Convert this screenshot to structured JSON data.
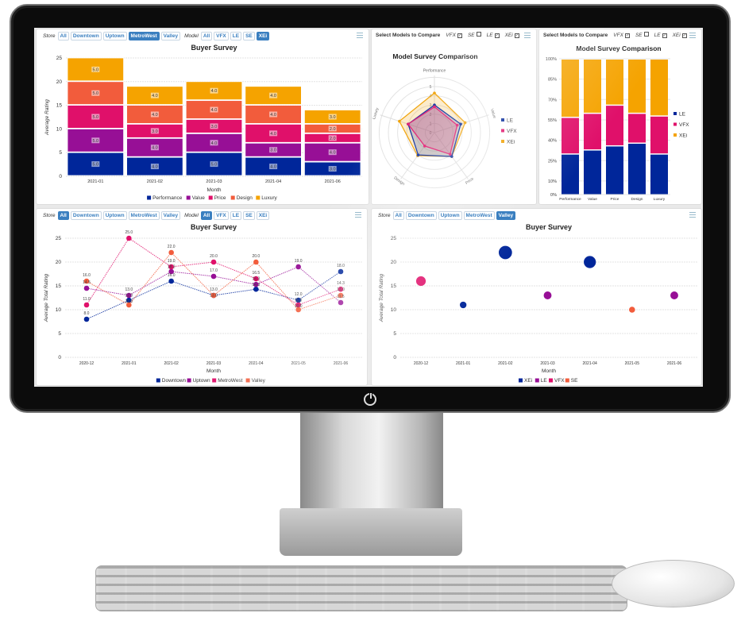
{
  "panels": [
    {
      "type": "store_model",
      "store_label": "Store",
      "stores": [
        "All",
        "Downtown",
        "Uptown",
        "MetroWest",
        "Valley"
      ],
      "store_active": 3,
      "model_label": "Model",
      "models": [
        "All",
        "VFX",
        "LE",
        "SE",
        "XEi"
      ],
      "model_active": 4
    },
    {
      "type": "compare",
      "label": "Select Models to Compare",
      "models": [
        {
          "name": "VFX",
          "checked": true
        },
        {
          "name": "SE",
          "checked": false
        },
        {
          "name": "LE",
          "checked": true
        },
        {
          "name": "XEi",
          "checked": true
        }
      ]
    },
    {
      "type": "compare",
      "label": "Select Models to Compare",
      "models": [
        {
          "name": "VFX",
          "checked": true
        },
        {
          "name": "SE",
          "checked": false
        },
        {
          "name": "LE",
          "checked": true
        },
        {
          "name": "XEi",
          "checked": true
        }
      ]
    },
    {
      "type": "store_model",
      "store_label": "Store",
      "stores": [
        "All",
        "Downtown",
        "Uptown",
        "MetroWest",
        "Valley"
      ],
      "store_active": 0,
      "model_label": "Model",
      "models": [
        "All",
        "VFX",
        "LE",
        "SE",
        "XEi"
      ],
      "model_active": 0
    },
    {
      "type": "store",
      "store_label": "Store",
      "stores": [
        "All",
        "Downtown",
        "Uptown",
        "MetroWest",
        "Valley"
      ],
      "store_active": 4
    }
  ],
  "colors": {
    "accent": "#3a7fc0",
    "navy": "#00269a",
    "purple": "#970f96",
    "pink": "#e0106a",
    "coral": "#f25c3c",
    "amber": "#f5a300"
  },
  "chart_data": [
    {
      "type": "bar",
      "stacked": true,
      "title": "Buyer Survey",
      "xlabel": "Month",
      "ylabel": "Average Rating",
      "ylim": [
        0,
        25
      ],
      "yticks": [
        0,
        5,
        10,
        15,
        20,
        25
      ],
      "grid": true,
      "legend": "bottom",
      "categories": [
        "2021-01",
        "2021-02",
        "2021-03",
        "2021-04",
        "2021-06"
      ],
      "series": [
        {
          "name": "Performance",
          "color": "#00269a",
          "values": [
            5,
            4,
            5,
            4,
            3
          ]
        },
        {
          "name": "Value",
          "color": "#970f96",
          "values": [
            5,
            4,
            4,
            3,
            4
          ]
        },
        {
          "name": "Price",
          "color": "#e0106a",
          "values": [
            5,
            3,
            3,
            4,
            2
          ]
        },
        {
          "name": "Design",
          "color": "#f25c3c",
          "values": [
            5,
            4,
            4,
            4,
            2
          ]
        },
        {
          "name": "Luxury",
          "color": "#f5a300",
          "values": [
            5,
            4,
            4,
            4,
            3
          ]
        }
      ]
    },
    {
      "type": "radar",
      "title": "Model Survey Comparison",
      "axes": [
        "Performance",
        "Value",
        "Price",
        "Design",
        "Luxury"
      ],
      "rlim": [
        0,
        5
      ],
      "rticks": [
        0,
        1,
        2,
        3,
        4,
        5
      ],
      "legend": "right",
      "series": [
        {
          "name": "LE",
          "color": "#00269a",
          "values": [
            3,
            3,
            3.2,
            3,
            3
          ]
        },
        {
          "name": "VFX",
          "color": "#e0106a",
          "values": [
            2.8,
            2.6,
            2.9,
            1.8,
            3
          ]
        },
        {
          "name": "XEi",
          "color": "#f0a000",
          "values": [
            4.3,
            3.5,
            3.2,
            3.1,
            4
          ]
        }
      ]
    },
    {
      "type": "bar",
      "stacked": true,
      "percent": true,
      "title": "Model Survey Comparison",
      "yticks": [
        "0%",
        "10%",
        "25%",
        "40%",
        "55%",
        "70%",
        "85%",
        "100%"
      ],
      "ytick_values": [
        0,
        10,
        25,
        40,
        55,
        70,
        85,
        100
      ],
      "legend": "right",
      "categories": [
        "Performance",
        "Value",
        "Price",
        "Design",
        "Luxury"
      ],
      "series": [
        {
          "name": "LE",
          "color": "#00269a",
          "values": [
            30,
            33,
            36,
            38,
            30
          ]
        },
        {
          "name": "VFX",
          "color": "#e0106a",
          "values": [
            27,
            27,
            30,
            22,
            28
          ]
        },
        {
          "name": "XEi",
          "color": "#f5a300",
          "values": [
            43,
            40,
            34,
            40,
            42
          ]
        }
      ]
    },
    {
      "type": "line",
      "title": "Buyer Survey",
      "xlabel": "Month",
      "ylabel": "Average Total Rating",
      "ylim": [
        0,
        25
      ],
      "yticks": [
        0,
        5,
        10,
        15,
        20,
        25
      ],
      "grid": true,
      "legend": "bottom",
      "x": [
        "2020-12",
        "2021-01",
        "2021-02",
        "2021-03",
        "2021-04",
        "2021-05",
        "2021-06"
      ],
      "series": [
        {
          "name": "Downtown",
          "color": "#00269a",
          "values": [
            8,
            12,
            16,
            13,
            14.3,
            12,
            18
          ]
        },
        {
          "name": "Uptown",
          "color": "#970f96",
          "values": [
            14.5,
            13,
            18,
            17,
            15.3,
            19,
            11.5
          ]
        },
        {
          "name": "MetroWest",
          "color": "#e0106a",
          "values": [
            11,
            25,
            19,
            20,
            16.5,
            11,
            14.3
          ]
        },
        {
          "name": "Valley",
          "color": "#f25c3c",
          "values": [
            16,
            11,
            22,
            13,
            20,
            10,
            13
          ]
        }
      ]
    },
    {
      "type": "scatter",
      "title": "Buyer Survey",
      "xlabel": "Month",
      "ylabel": "Average Total Rating",
      "ylim": [
        0,
        25
      ],
      "yticks": [
        0,
        5,
        10,
        15,
        20,
        25
      ],
      "grid": true,
      "legend": "bottom",
      "x": [
        "2020-12",
        "2021-01",
        "2021-02",
        "2021-03",
        "2021-04",
        "2021-05",
        "2021-06"
      ],
      "series": [
        {
          "name": "XEi",
          "color": "#00269a",
          "points": [
            [
              "2021-01",
              11
            ],
            [
              "2021-02",
              22
            ],
            [
              "2021-04",
              20
            ]
          ]
        },
        {
          "name": "LE",
          "color": "#970f96",
          "points": [
            [
              "2021-03",
              13
            ],
            [
              "2021-06",
              13
            ]
          ]
        },
        {
          "name": "VFX",
          "color": "#e0106a",
          "points": [
            [
              "2020-12",
              16
            ]
          ]
        },
        {
          "name": "SE",
          "color": "#f25c3c",
          "points": [
            [
              "2021-05",
              10
            ]
          ]
        }
      ]
    }
  ]
}
